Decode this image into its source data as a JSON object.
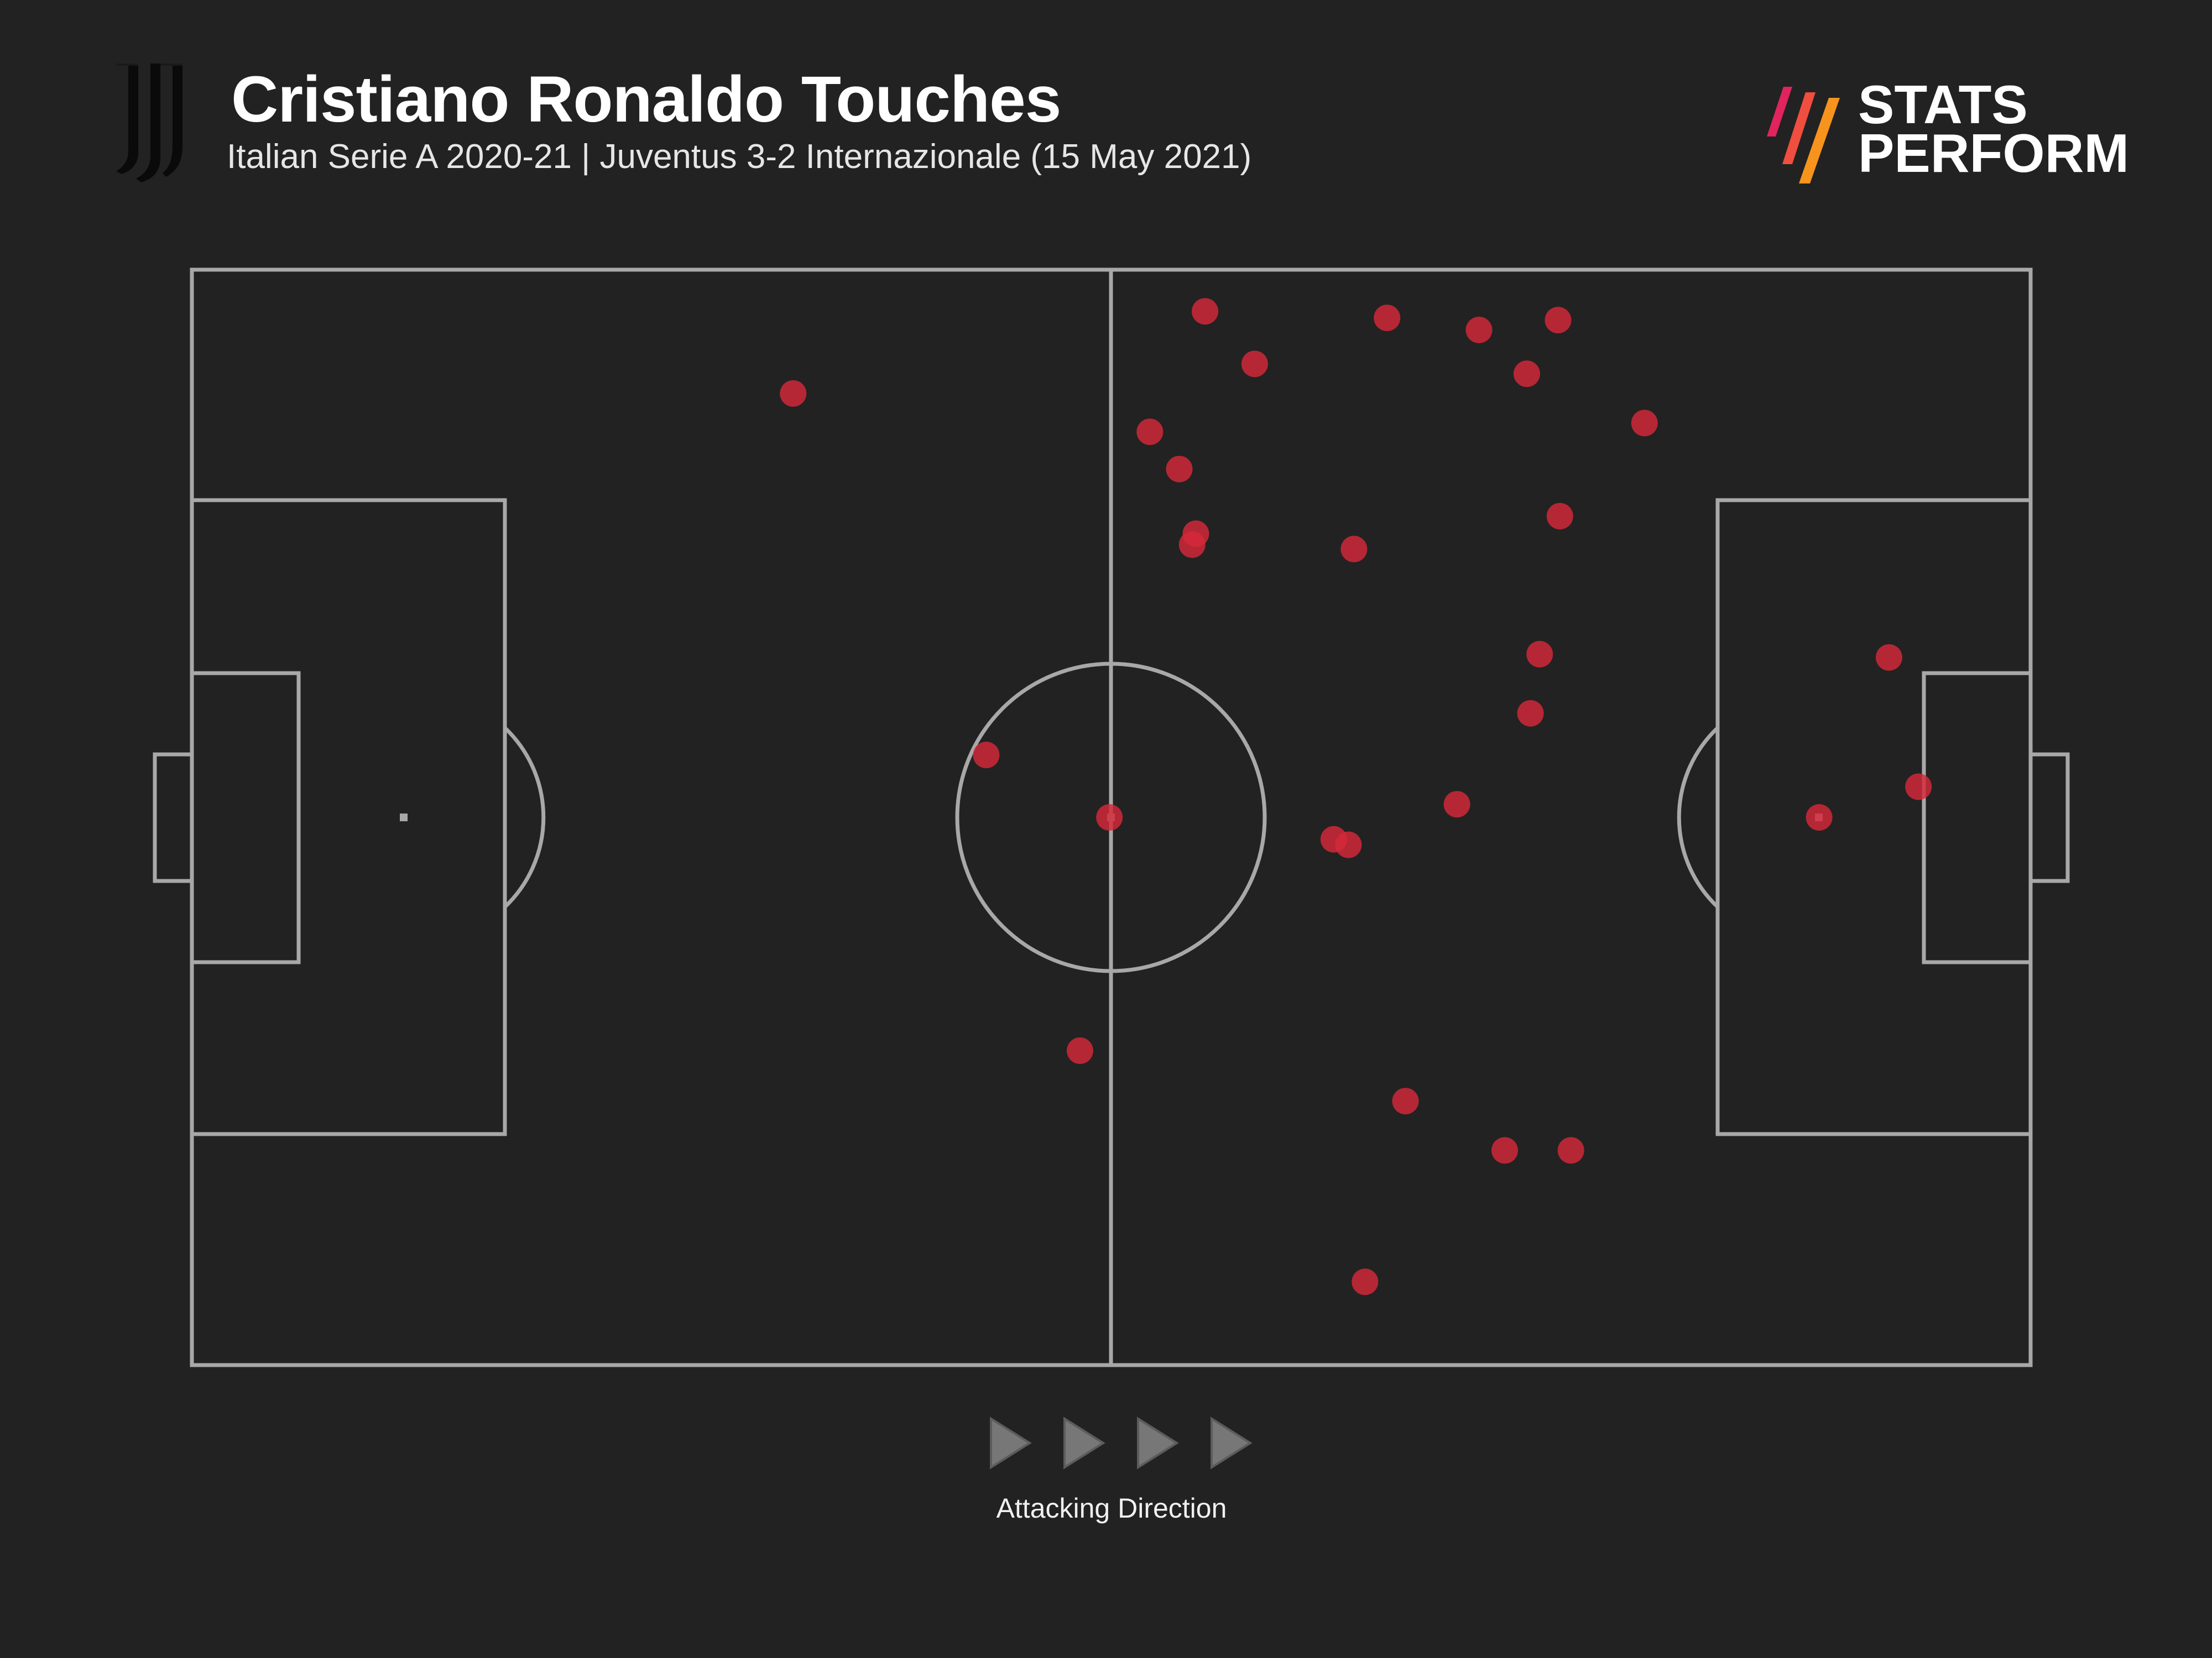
{
  "header": {
    "title": "Cristiano Ronaldo Touches",
    "subtitle": "Italian Serie A 2020-21 | Juventus 3-2 Internazionale (15 May 2021)",
    "club_logo_icon": "juventus-logo-icon"
  },
  "brand": {
    "line1": "STATS",
    "line2": "PERFORM",
    "mark_icon": "stats-perform-stripes-icon",
    "mark_colors": [
      "#e0245e",
      "#f04e3e",
      "#f7941d"
    ]
  },
  "footer": {
    "direction_label": "Attacking Direction",
    "arrow_icon": "play-triangle-icon"
  },
  "colors": {
    "background": "#222222",
    "pitch_lines": "#a8a8a8",
    "touch_marker": "#d62839",
    "arrow": "#777777"
  },
  "chart_data": {
    "type": "scatter",
    "title": "Cristiano Ronaldo Touches",
    "subtitle": "Italian Serie A 2020-21 | Juventus 3-2 Internazionale (15 May 2021)",
    "xlim": [
      0,
      100
    ],
    "ylim": [
      0,
      100
    ],
    "attacking_direction": "left-to-right",
    "series": [
      {
        "name": "",
        "points": [
          [
            32.7,
            88.7
          ],
          [
            55.1,
            96.2
          ],
          [
            57.8,
            91.4
          ],
          [
            65.0,
            95.6
          ],
          [
            70.0,
            94.5
          ],
          [
            74.3,
            95.4
          ],
          [
            72.6,
            90.5
          ],
          [
            79.0,
            86.0
          ],
          [
            52.1,
            85.2
          ],
          [
            53.7,
            81.8
          ],
          [
            54.6,
            75.9
          ],
          [
            54.4,
            74.9
          ],
          [
            63.2,
            74.5
          ],
          [
            74.4,
            77.5
          ],
          [
            73.3,
            64.9
          ],
          [
            72.8,
            59.5
          ],
          [
            92.3,
            64.6
          ],
          [
            43.2,
            55.7
          ],
          [
            49.9,
            50.0
          ],
          [
            68.8,
            51.2
          ],
          [
            62.1,
            48.0
          ],
          [
            62.9,
            47.5
          ],
          [
            88.5,
            50.0
          ],
          [
            93.9,
            52.8
          ],
          [
            48.3,
            28.7
          ],
          [
            66.0,
            24.1
          ],
          [
            71.4,
            19.6
          ],
          [
            75.0,
            19.6
          ],
          [
            63.8,
            7.6
          ]
        ]
      }
    ]
  }
}
